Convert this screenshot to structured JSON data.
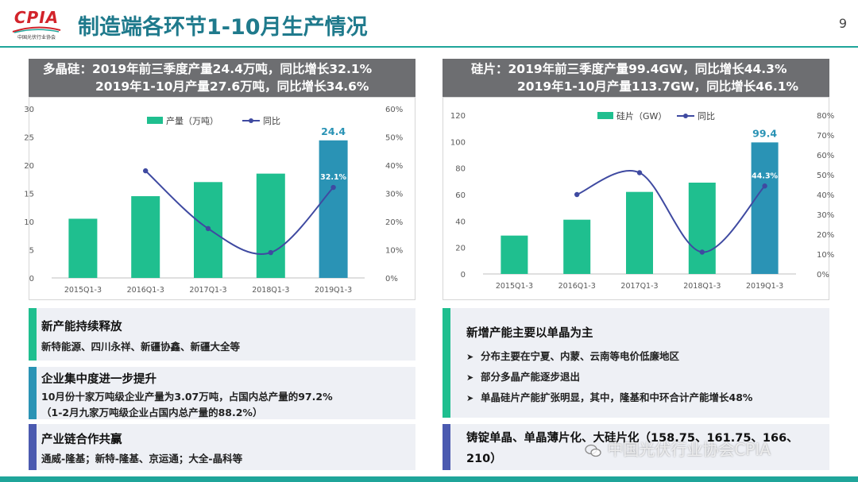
{
  "logo": {
    "text": "CPIA",
    "sub": "中国光伏行业协会"
  },
  "header": {
    "title": "制造端各环节1-10月生产情况",
    "page_number": "9"
  },
  "colors": {
    "teal": "#1fa59a",
    "bar_green": "#1fbf8f",
    "bar_highlight": "#2a93b5",
    "line": "#3f4aa1",
    "panel_header": "#6d6e71",
    "navy": "#4b5ab0"
  },
  "left_panel": {
    "header_line1": "多晶硅：2019年前三季度产量24.4万吨，同比增长32.1%",
    "header_line2": "2019年1-10月产量27.6万吨，同比增长34.6%"
  },
  "right_panel": {
    "header_line1": "硅片：2019年前三季度产量99.4GW，同比增长44.3%",
    "header_line2": "2019年1-10月产量113.7GW，同比增长46.1%"
  },
  "chart_data": [
    {
      "type": "bar",
      "categories": [
        "2015Q1-3",
        "2016Q1-3",
        "2017Q1-3",
        "2018Q1-3",
        "2019Q1-3"
      ],
      "series": [
        {
          "name": "产量（万吨）",
          "type": "bar",
          "values": [
            10.5,
            14.5,
            17.0,
            18.5,
            24.4
          ]
        },
        {
          "name": "同比",
          "type": "line",
          "axis": "right",
          "values": [
            null,
            38,
            17.5,
            9,
            32.1
          ]
        }
      ],
      "data_labels": {
        "bar_last": "24.4",
        "line_last": "32.1%"
      },
      "ylim": [
        0,
        30
      ],
      "yticks": [
        "0",
        "5",
        "10",
        "15",
        "20",
        "25",
        "30"
      ],
      "y2lim": [
        0,
        60
      ],
      "y2ticks": [
        "0%",
        "10%",
        "20%",
        "30%",
        "40%",
        "50%",
        "60%"
      ],
      "legend": "top-center",
      "grid": false
    },
    {
      "type": "bar",
      "categories": [
        "2015Q1-3",
        "2016Q1-3",
        "2017Q1-3",
        "2018Q1-3",
        "2019Q1-3"
      ],
      "series": [
        {
          "name": "硅片（GW）",
          "type": "bar",
          "values": [
            29,
            41,
            62,
            69,
            99.4
          ]
        },
        {
          "name": "同比",
          "type": "line",
          "axis": "right",
          "values": [
            null,
            40,
            51,
            11,
            44.3
          ]
        }
      ],
      "data_labels": {
        "bar_last": "99.4",
        "line_last": "44.3%"
      },
      "ylim": [
        0,
        120
      ],
      "yticks": [
        "0",
        "20",
        "40",
        "60",
        "80",
        "100",
        "120"
      ],
      "y2lim": [
        0,
        80
      ],
      "y2ticks": [
        "0%",
        "10%",
        "20%",
        "30%",
        "40%",
        "50%",
        "60%",
        "70%",
        "80%"
      ],
      "legend": "top-center",
      "grid": false
    }
  ],
  "left_boxes": [
    {
      "head": "新产能持续释放",
      "lines": [
        "新特能源、四川永祥、新疆协鑫、新疆大全等"
      ],
      "color": "#1fbf8f"
    },
    {
      "head": "企业集中度进一步提升",
      "lines": [
        "10月份十家万吨级企业产量为3.07万吨，占国内总产量的97.2%",
        "（1-2月九家万吨级企业占国内总产量的88.2%）"
      ],
      "color": "#2a93b5"
    },
    {
      "head": "产业链合作共赢",
      "lines": [
        "通威-隆基；新特-隆基、京运通；大全-晶科等"
      ],
      "color": "#4b5ab0"
    }
  ],
  "right_boxes": {
    "box1": {
      "head": "新增产能主要以单晶为主",
      "bullets": [
        "分布主要在宁夏、内蒙、云南等电价低廉地区",
        "部分多晶产能逐步退出",
        "单晶硅片产能扩张明显，其中，隆基和中环合计产能增长48%"
      ],
      "bullet_icon": "arrow-right-icon"
    },
    "box2": {
      "line1": "铸锭单晶、单晶薄片化、大硅片化（158.75、161.75、166、",
      "line2": "210）"
    }
  },
  "watermark": {
    "text": "中国光伏行业协会CPIA",
    "icon": "wechat-icon"
  }
}
